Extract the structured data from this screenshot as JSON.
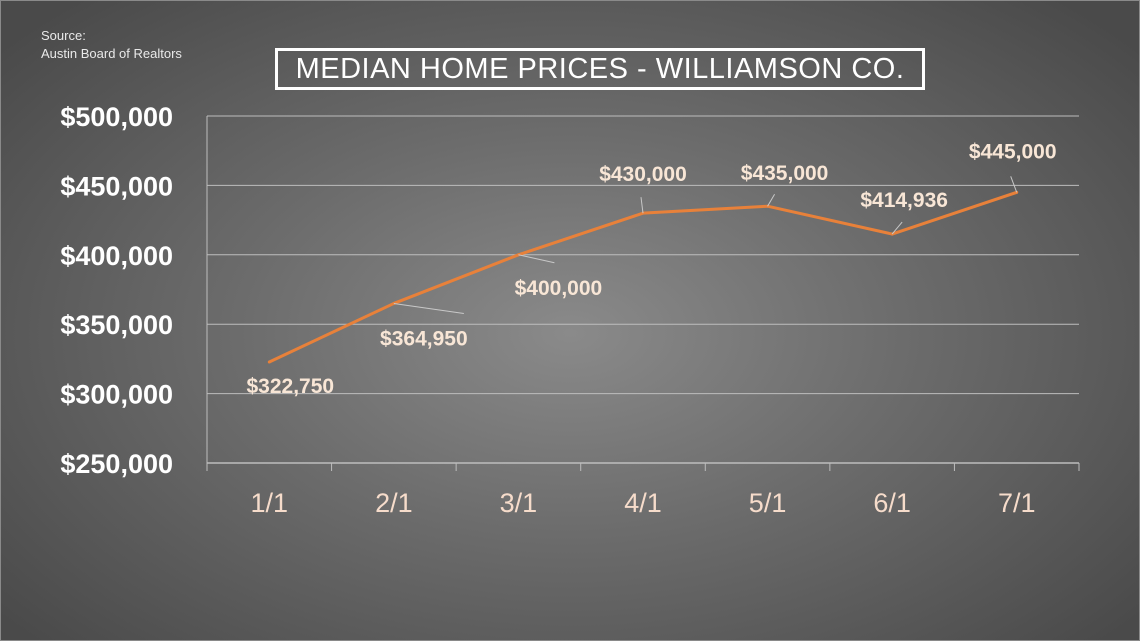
{
  "source": {
    "line1": "Source:",
    "line2": "Austin Board of Realtors"
  },
  "colors": {
    "line": "#e8813a",
    "grid": "#bdbdbd",
    "tick_text": "#ffffff",
    "category_text": "#f6dccb",
    "data_label_text": "#f8e6d6"
  },
  "chart_data": {
    "type": "line",
    "title": "MEDIAN HOME PRICES - WILLIAMSON CO.",
    "xlabel": "",
    "ylabel": "",
    "categories": [
      "1/1",
      "2/1",
      "3/1",
      "4/1",
      "5/1",
      "6/1",
      "7/1"
    ],
    "series": [
      {
        "values": [
          322750,
          364950,
          400000,
          430000,
          435000,
          414936,
          445000
        ],
        "data_labels": [
          "$322,750",
          "$364,950",
          "$400,000",
          "$430,000",
          "$435,000",
          "$414,936",
          "$445,000"
        ]
      }
    ],
    "ylim": [
      250000,
      500000
    ],
    "yticks": [
      250000,
      300000,
      350000,
      400000,
      450000,
      500000
    ],
    "ytick_labels": [
      "$250,000",
      "$300,000",
      "$350,000",
      "$400,000",
      "$450,000",
      "$500,000"
    ],
    "grid": true,
    "legend": "none"
  }
}
